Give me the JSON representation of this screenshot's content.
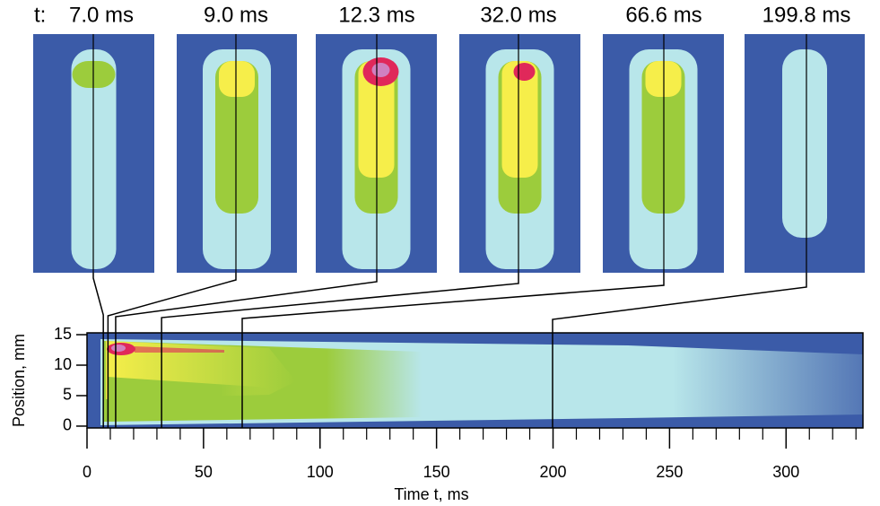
{
  "chart_data": {
    "type": "heatmap",
    "x_label": "Time t, ms",
    "y_label": "Position, mm",
    "xlim": [
      0,
      333
    ],
    "ylim": [
      -0.3,
      15.3
    ],
    "xticks": [
      0,
      50,
      100,
      150,
      200,
      250,
      300
    ],
    "yticks": [
      0,
      5,
      10,
      15
    ],
    "x_minor_step": 10,
    "snapshot_prefix": "t:",
    "snapshots": {
      "times": [
        7.0,
        9.0,
        12.3,
        32.0,
        66.6,
        199.8
      ],
      "value_labels": [
        "7.0 ms",
        "9.0 ms",
        "12.3 ms",
        "32.0 ms",
        "66.6 ms",
        "199.8 ms"
      ]
    }
  }
}
